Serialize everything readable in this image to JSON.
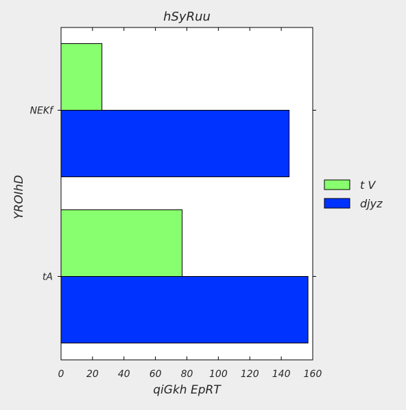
{
  "chart_data": {
    "type": "bar",
    "orientation": "horizontal",
    "title": "hSyRuu",
    "xlabel": "qiGkh EpRT",
    "ylabel": "YROIhD",
    "categories": [
      "NEKf",
      "tA"
    ],
    "series": [
      {
        "name": "t V",
        "color": "#88ff6e",
        "values": [
          26,
          77
        ]
      },
      {
        "name": "djyz",
        "color": "#0033ff",
        "values": [
          145,
          157
        ]
      }
    ],
    "xlim": [
      0,
      160
    ],
    "xticks": [
      0,
      20,
      40,
      60,
      80,
      100,
      120,
      140,
      160
    ],
    "grid": false,
    "legend_position": "right"
  }
}
